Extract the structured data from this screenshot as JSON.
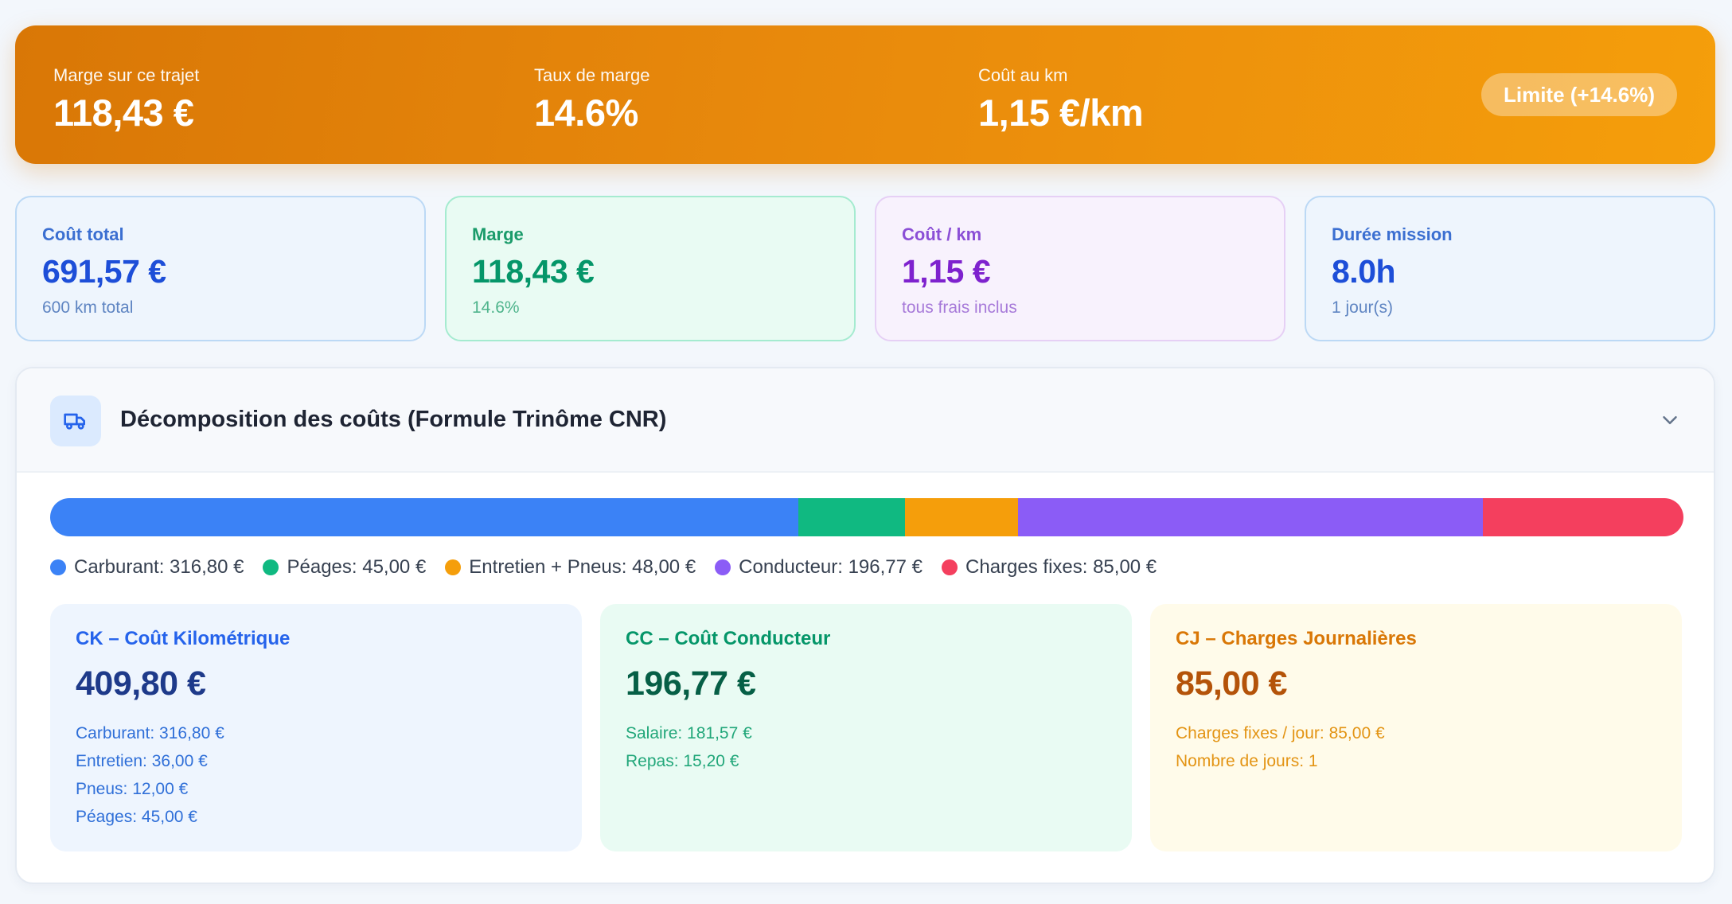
{
  "hero": {
    "stats": [
      {
        "label": "Marge sur ce trajet",
        "value": "118,43 €"
      },
      {
        "label": "Taux de marge",
        "value": "14.6%"
      },
      {
        "label": "Coût au km",
        "value": "1,15 €/km"
      }
    ],
    "badge": "Limite (+14.6%)"
  },
  "kpis": [
    {
      "label": "Coût total",
      "value": "691,57 €",
      "sub": "600 km total"
    },
    {
      "label": "Marge",
      "value": "118,43 €",
      "sub": "14.6%"
    },
    {
      "label": "Coût / km",
      "value": "1,15 €",
      "sub": "tous frais inclus"
    },
    {
      "label": "Durée mission",
      "value": "8.0h",
      "sub": "1 jour(s)"
    }
  ],
  "breakdown": {
    "title": "Décomposition des coûts (Formule Trinôme CNR)",
    "icon": "truck-icon",
    "segments": [
      {
        "label": "Carburant: 316,80 €",
        "value": 316.8,
        "color": "#3b82f6"
      },
      {
        "label": "Péages: 45,00 €",
        "value": 45.0,
        "color": "#10b981"
      },
      {
        "label": "Entretien + Pneus: 48,00 €",
        "value": 48.0,
        "color": "#f59e0b"
      },
      {
        "label": "Conducteur: 196,77 €",
        "value": 196.77,
        "color": "#8b5cf6"
      },
      {
        "label": "Charges fixes: 85,00 €",
        "value": 85.0,
        "color": "#f43f5e"
      }
    ],
    "cards": [
      {
        "title": "CK – Coût Kilométrique",
        "value": "409,80 €",
        "lines": [
          "Carburant: 316,80 €",
          "Entretien: 36,00 €",
          "Pneus: 12,00 €",
          "Péages: 45,00 €"
        ]
      },
      {
        "title": "CC – Coût Conducteur",
        "value": "196,77 €",
        "lines": [
          "Salaire: 181,57 €",
          "Repas: 15,20 €"
        ]
      },
      {
        "title": "CJ – Charges Journalières",
        "value": "85,00 €",
        "lines": [
          "Charges fixes / jour: 85,00 €",
          "Nombre de jours: 1"
        ]
      }
    ]
  }
}
